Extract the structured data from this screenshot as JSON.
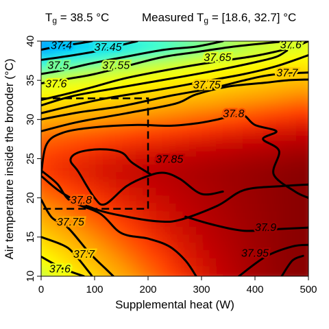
{
  "header": {
    "left": {
      "symbol": "T",
      "subscript": "g",
      "text": " = 38.5 °C"
    },
    "right": {
      "prefix": "Measured T",
      "subscript": "g",
      "text": " = [18.6, 32.7] °C"
    }
  },
  "chart_data": {
    "type": "heatmap",
    "title": "",
    "xlabel": "Supplemental heat (W)",
    "ylabel": "Air temperature inside the brooder (°C)",
    "xlim": [
      0,
      500
    ],
    "ylim": [
      10,
      40
    ],
    "xticks": [
      0,
      100,
      200,
      300,
      400,
      500
    ],
    "yticks": [
      10,
      15,
      20,
      25,
      30,
      35,
      40
    ],
    "grid": false,
    "legend": "none",
    "colormap": [
      "#00008f",
      "#0040ff",
      "#00d0ff",
      "#40ffd0",
      "#c0ff40",
      "#ffff00",
      "#ffd000",
      "#ff9800",
      "#ff4000",
      "#c00000",
      "#800000"
    ],
    "color_range": [
      37.25,
      38.0
    ],
    "contour_color": "#000000",
    "contours": [
      {
        "level": "37.4",
        "points": [
          [
            0,
            38.9
          ],
          [
            30,
            39.3
          ],
          [
            70,
            39.7
          ],
          [
            95,
            40
          ]
        ],
        "label": {
          "x": 38,
          "y": 39.5
        }
      },
      {
        "level": "37.45",
        "points": [
          [
            0,
            37.6
          ],
          [
            60,
            38.2
          ],
          [
            110,
            38.8
          ],
          [
            150,
            39.5
          ],
          [
            180,
            40
          ]
        ],
        "label": {
          "x": 125,
          "y": 39.3
        }
      },
      {
        "level": "37.5",
        "points": [
          [
            0,
            35.8
          ],
          [
            40,
            36.3
          ],
          [
            90,
            37.1
          ],
          [
            150,
            37.9
          ],
          [
            230,
            38.9
          ],
          [
            290,
            39.3
          ],
          [
            340,
            40
          ]
        ],
        "label": {
          "x": 32,
          "y": 37.0
        }
      },
      {
        "level": "37.55",
        "points": [
          [
            0,
            34.6
          ],
          [
            60,
            35.3
          ],
          [
            100,
            35.8
          ],
          [
            170,
            37.0
          ],
          [
            230,
            38.0
          ],
          [
            290,
            38.6
          ],
          [
            360,
            39.3
          ],
          [
            430,
            39.8
          ],
          [
            460,
            40
          ]
        ],
        "label": {
          "x": 140,
          "y": 37.0
        }
      },
      {
        "level": "37.6",
        "points": [
          [
            0,
            32.5
          ],
          [
            50,
            33.3
          ],
          [
            100,
            34.2
          ],
          [
            160,
            35.3
          ],
          [
            250,
            36.5
          ],
          [
            320,
            37.3
          ],
          [
            390,
            38.0
          ],
          [
            435,
            38.6
          ],
          [
            475,
            39.3
          ],
          [
            500,
            40
          ]
        ],
        "label": {
          "x": 28,
          "y": 34.6
        }
      },
      {
        "level": "37.6",
        "points": [
          [
            0,
            31.8
          ],
          [
            60,
            33.0
          ],
          [
            140,
            34.0
          ],
          [
            250,
            35.3
          ],
          [
            330,
            36.3
          ],
          [
            400,
            37.3
          ],
          [
            440,
            38.0
          ],
          [
            460,
            38.8
          ]
        ],
        "label": {
          "x": 467,
          "y": 39.6
        }
      },
      {
        "level": "37.65",
        "points": [
          [
            0,
            30.8
          ],
          [
            60,
            31.8
          ],
          [
            130,
            32.8
          ],
          [
            220,
            33.8
          ],
          [
            300,
            34.8
          ],
          [
            380,
            35.8
          ],
          [
            440,
            36.8
          ],
          [
            500,
            38.2
          ]
        ],
        "label": {
          "x": 330,
          "y": 38.0
        }
      },
      {
        "level": "37.7",
        "points": [
          [
            0,
            30.0
          ],
          [
            70,
            30.9
          ],
          [
            150,
            31.7
          ],
          [
            240,
            33.0
          ],
          [
            320,
            34.0
          ],
          [
            380,
            35.0
          ],
          [
            430,
            35.7
          ],
          [
            500,
            36.0
          ]
        ],
        "label": {
          "x": 460,
          "y": 36.0
        }
      },
      {
        "level": "37.75",
        "points": [
          [
            0,
            28.5
          ],
          [
            70,
            29.7
          ],
          [
            160,
            30.8
          ],
          [
            250,
            32.0
          ],
          [
            290,
            33.2
          ],
          [
            350,
            34.2
          ],
          [
            420,
            34.7
          ],
          [
            460,
            35.0
          ],
          [
            500,
            35.1
          ]
        ],
        "label": {
          "x": 310,
          "y": 34.5
        }
      },
      {
        "level": "37.8",
        "points": [
          [
            0,
            23.0
          ],
          [
            10,
            26.8
          ],
          [
            40,
            28.3
          ],
          [
            100,
            29.0
          ],
          [
            180,
            29.3
          ],
          [
            240,
            29.2
          ],
          [
            290,
            29.5
          ],
          [
            330,
            30.0
          ],
          [
            360,
            30.5
          ],
          [
            380,
            30.5
          ],
          [
            400,
            29.3
          ],
          [
            440,
            28.5
          ],
          [
            415,
            27.5
          ],
          [
            445,
            26.0
          ],
          [
            435,
            23.0
          ],
          [
            475,
            20.8
          ],
          [
            500,
            20.0
          ]
        ],
        "label": {
          "x": 360,
          "y": 30.8
        }
      },
      {
        "level": "37.8",
        "points": [
          [
            0,
            23.5
          ],
          [
            30,
            21.8
          ],
          [
            55,
            19.6
          ],
          [
            110,
            18.0
          ],
          [
            150,
            15.5
          ],
          [
            200,
            14.8
          ],
          [
            240,
            13.8
          ],
          [
            270,
            12.0
          ],
          [
            290,
            10.0
          ]
        ],
        "label": {
          "x": 75,
          "y": 19.8
        }
      },
      {
        "level": "37.85",
        "points": [
          [
            0,
            22.8
          ],
          [
            40,
            20.6
          ],
          [
            100,
            18.6
          ],
          [
            160,
            17.6
          ],
          [
            220,
            17.0
          ],
          [
            260,
            17.2
          ],
          [
            330,
            19.0
          ],
          [
            380,
            21.0
          ],
          [
            450,
            21.5
          ],
          [
            500,
            21.7
          ]
        ],
        "label": {
          "x": 0,
          "y": 0
        }
      },
      {
        "level": "37.85",
        "points": [
          [
            205,
            23.0
          ],
          [
            170,
            24.5
          ],
          [
            150,
            25.8
          ],
          [
            110,
            26.2
          ],
          [
            70,
            25.8
          ],
          [
            55,
            24.8
          ],
          [
            70,
            23.3
          ],
          [
            100,
            20.0
          ],
          [
            120,
            19.2
          ],
          [
            160,
            21.5
          ],
          [
            200,
            22.8
          ],
          [
            230,
            23.2
          ],
          [
            260,
            22.4
          ],
          [
            300,
            20.5
          ],
          [
            340,
            20.8
          ]
        ],
        "label": {
          "x": 240,
          "y": 25.0
        }
      },
      {
        "level": "37.75",
        "points": [
          [
            0,
            19.8
          ],
          [
            20,
            17.5
          ],
          [
            50,
            16.2
          ],
          [
            90,
            13.0
          ],
          [
            120,
            11.0
          ],
          [
            135,
            10.0
          ]
        ],
        "label": {
          "x": 55,
          "y": 17.0
        }
      },
      {
        "level": "37.7",
        "points": [
          [
            0,
            15.0
          ],
          [
            40,
            14.0
          ],
          [
            60,
            13.0
          ],
          [
            90,
            10.5
          ],
          [
            95,
            10.0
          ]
        ],
        "label": {
          "x": 80,
          "y": 12.9
        }
      },
      {
        "level": "37.6",
        "points": [
          [
            0,
            12.5
          ],
          [
            40,
            11.0
          ],
          [
            80,
            10.0
          ]
        ],
        "label": {
          "x": 35,
          "y": 11.0
        }
      },
      {
        "level": "37.9",
        "points": [
          [
            270,
            17.6
          ],
          [
            320,
            16.6
          ],
          [
            380,
            15.8
          ],
          [
            440,
            16.0
          ],
          [
            500,
            16.2
          ]
        ],
        "label": {
          "x": 420,
          "y": 16.3
        }
      },
      {
        "level": "37.95",
        "points": [
          [
            370,
            10.0
          ],
          [
            420,
            12.5
          ],
          [
            470,
            13.8
          ],
          [
            500,
            14.0
          ]
        ],
        "label": {
          "x": 400,
          "y": 13.0
        }
      },
      {
        "level": "",
        "points": [
          [
            450,
            10.0
          ],
          [
            470,
            12.0
          ],
          [
            490,
            12.6
          ]
        ],
        "label": {
          "x": 0,
          "y": 0
        }
      }
    ],
    "region": {
      "x": [
        0,
        200
      ],
      "y": [
        18.6,
        32.7
      ],
      "style": "dashed"
    }
  }
}
